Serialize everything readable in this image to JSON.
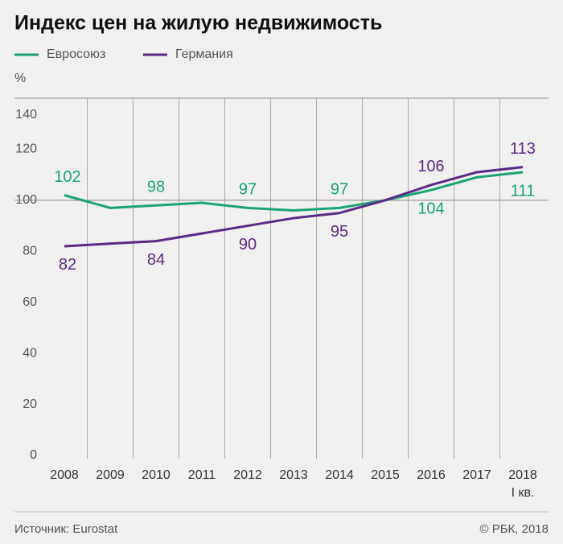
{
  "chart_data": {
    "type": "line",
    "title": "Индекс цен на жилую недвижимость",
    "y_label": "%",
    "categories": [
      "2008",
      "2009",
      "2010",
      "2011",
      "2012",
      "2013",
      "2014",
      "2015",
      "2016",
      "2017",
      "2018"
    ],
    "category_note": "I кв.",
    "series": [
      {
        "name": "Евросоюз",
        "color": "#1aa476",
        "values": [
          102,
          97,
          98,
          99,
          97,
          96,
          97,
          100,
          104,
          109,
          111
        ],
        "value_labels": [
          "102",
          null,
          "98",
          null,
          "97",
          null,
          "97",
          null,
          "104",
          null,
          "111"
        ]
      },
      {
        "name": "Германия",
        "color": "#5b2a86",
        "values": [
          82,
          83,
          84,
          87,
          90,
          93,
          95,
          100,
          106,
          111,
          113
        ],
        "value_labels": [
          "82",
          null,
          "84",
          null,
          "90",
          null,
          "95",
          null,
          "106",
          null,
          "113"
        ]
      }
    ],
    "ylim": [
      0,
      140
    ],
    "yticks": [
      0,
      20,
      40,
      60,
      80,
      100,
      120,
      140
    ],
    "hline": 100,
    "source": "Источник: Eurostat",
    "credit": "© РБК, 2018"
  }
}
